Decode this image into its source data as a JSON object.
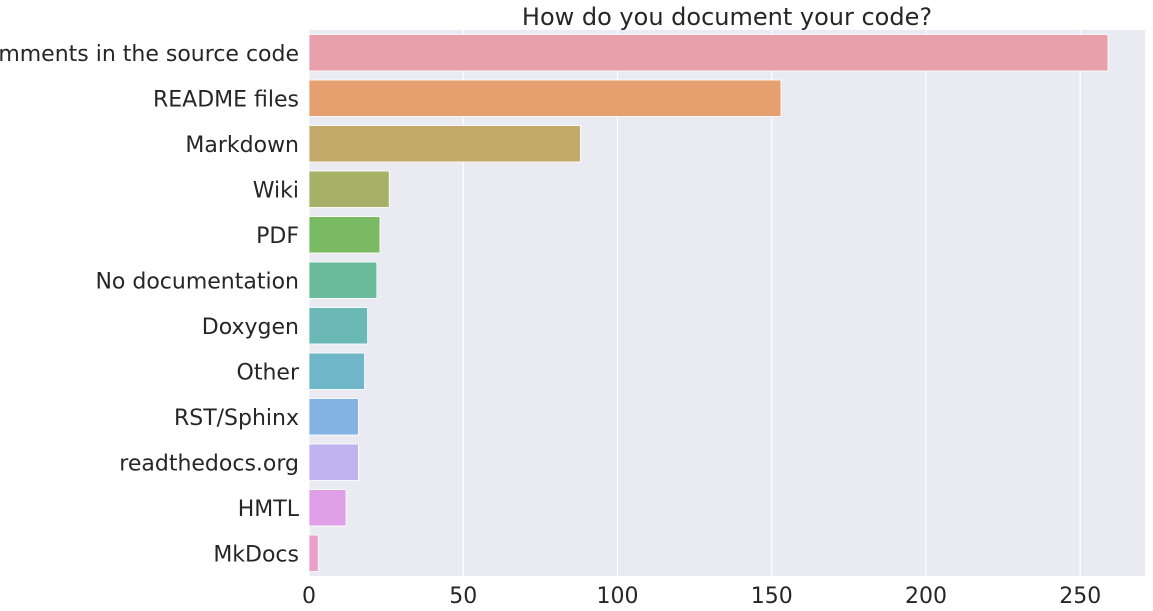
{
  "chart_data": {
    "type": "bar",
    "orientation": "horizontal",
    "title": "How do you document your code?",
    "xlabel": "",
    "ylabel": "",
    "xlim": [
      0,
      271
    ],
    "xticks": [
      0,
      50,
      100,
      150,
      200,
      250
    ],
    "grid": true,
    "categories": [
      "Comments in the source code",
      "README files",
      "Markdown",
      "Wiki",
      "PDF",
      "No documentation",
      "Doxygen",
      "Other",
      "RST/Sphinx",
      "readthedocs.org",
      "HMTL",
      "MkDocs"
    ],
    "values": [
      259,
      153,
      88,
      26,
      23,
      22,
      19,
      18,
      16,
      16,
      12,
      3
    ],
    "colors": [
      "#e8a0aa",
      "#e6a070",
      "#c4aa6a",
      "#a6b066",
      "#7aba62",
      "#69bb9c",
      "#6bb9b6",
      "#6fb7c8",
      "#83b3e3",
      "#bfb2ee",
      "#e0a0e8",
      "#e8a0c8"
    ],
    "background": "#eaeaf2",
    "grid_color": "#ffffff"
  }
}
